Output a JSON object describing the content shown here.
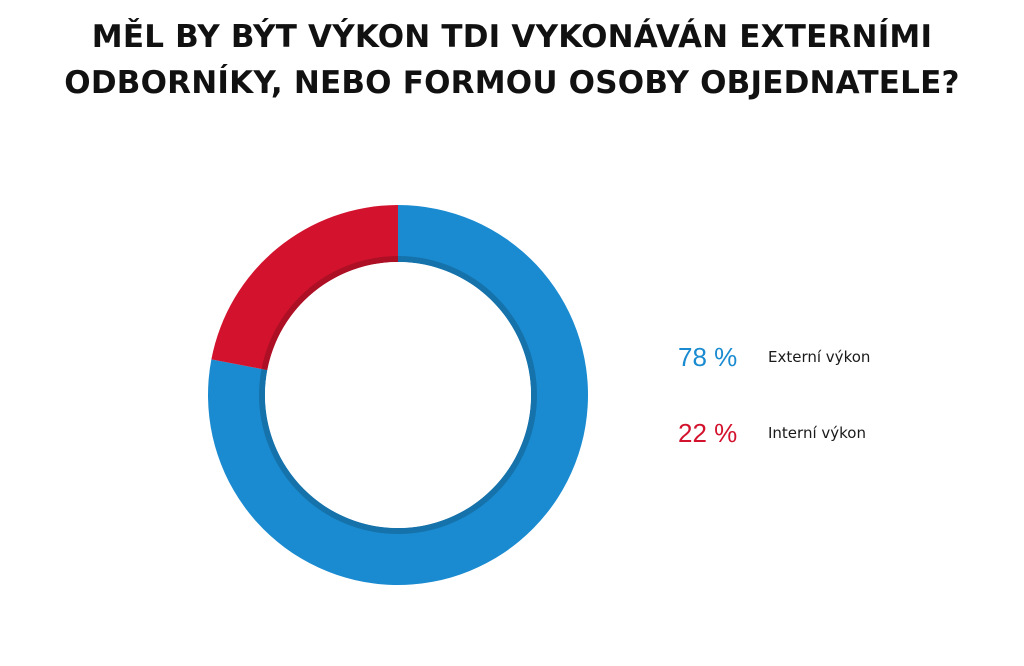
{
  "chart_data": {
    "type": "pie",
    "title_lines": [
      "MĚL BY BÝT VÝKON TDI VYKONÁVÁN EXTERNÍMI",
      "ODBORNÍKY, NEBO FORMOU OSOBY OBJEDNATELE?"
    ],
    "slices": [
      {
        "label": "Externí výkon",
        "value": 78,
        "value_label": "78 %",
        "color": "#1a8bd0"
      },
      {
        "label": "Interní výkon",
        "value": 22,
        "value_label": "22 %",
        "color": "#d3132e"
      }
    ],
    "donut": true,
    "legend_position": "right"
  }
}
